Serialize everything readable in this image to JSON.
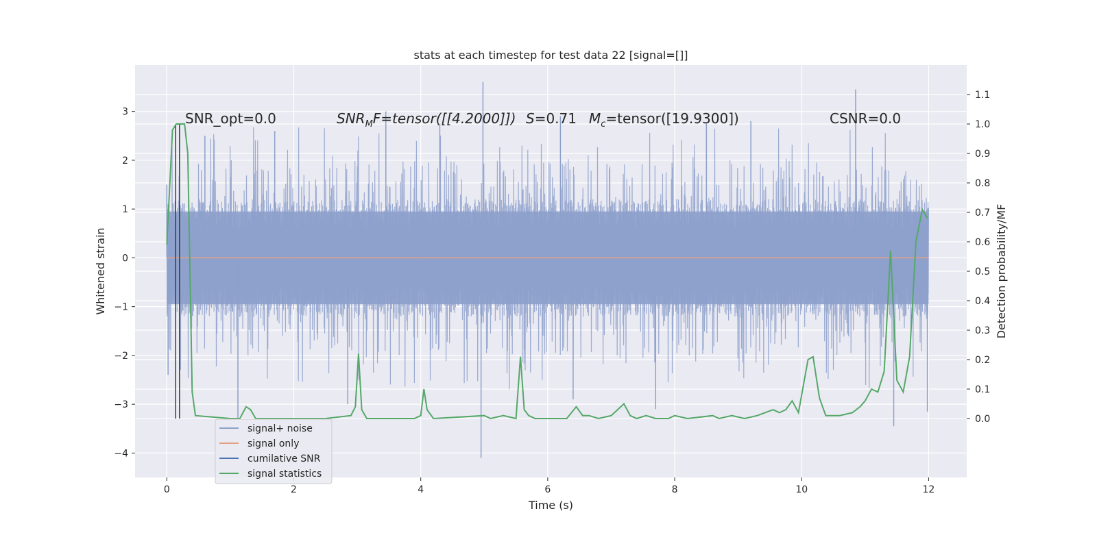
{
  "chart_data": {
    "type": "line",
    "title": "stats at each timestep for test data 22 [signal=[]]",
    "xlabel": "Time (s)",
    "ylabel": "Whitened strain",
    "y2label": "Detection probability/MF",
    "xlim": [
      -0.5,
      12.6
    ],
    "ylim": [
      -4.5,
      3.95
    ],
    "y2lim": [
      -0.2,
      1.2
    ],
    "xticks": [
      0,
      2,
      4,
      6,
      8,
      10,
      12
    ],
    "yticks": [
      -4,
      -3,
      -2,
      -1,
      0,
      1,
      2,
      3
    ],
    "y2ticks": [
      0.0,
      0.1,
      0.2,
      0.3,
      0.4,
      0.5,
      0.6,
      0.7,
      0.8,
      0.9,
      1.0,
      1.1
    ],
    "grid": true,
    "legend_position": "lower-left",
    "colors": {
      "signal_noise": "#8da0cb",
      "signal_only": "#e5a083",
      "cumulative_snr": "#4c72b0",
      "signal_statistics": "#55a868",
      "markers": "#3a3a3a",
      "axes_bg": "#eaeaf2",
      "grid": "#ffffff"
    },
    "annotations": {
      "snr_opt": "SNR_opt=0.0",
      "snr_mf_prefix": "SNR",
      "snr_mf_sub": "M",
      "snr_mf_rest": "F=tensor([[4.2000]])",
      "s_label": "S",
      "s_value": "=0.71",
      "mc_label": "M",
      "mc_sub": "c",
      "mc_value": "=tensor([19.9300])",
      "csnr": "CSNR=0.0"
    },
    "markers_x": [
      0.14,
      0.2
    ],
    "series": [
      {
        "name": "signal+ noise",
        "axis": "left",
        "style": "dense-noise",
        "x_range": [
          0,
          12
        ],
        "envelope_pos": 2.0,
        "envelope_neg": -1.85,
        "spikes": [
          {
            "x": 0.0,
            "y": 1.5
          },
          {
            "x": 0.02,
            "y": -2.4
          },
          {
            "x": 1.7,
            "y": 2.6
          },
          {
            "x": 1.12,
            "y": -3.3
          },
          {
            "x": 3.45,
            "y": 3.0
          },
          {
            "x": 4.98,
            "y": 3.6
          },
          {
            "x": 4.95,
            "y": -4.1
          },
          {
            "x": 2.85,
            "y": -3.0
          },
          {
            "x": 6.4,
            "y": -2.9
          },
          {
            "x": 7.7,
            "y": -3.1
          },
          {
            "x": 10.85,
            "y": 3.45
          },
          {
            "x": 11.45,
            "y": -3.45
          },
          {
            "x": 11.98,
            "y": -3.15
          },
          {
            "x": 0.6,
            "y": 2.5
          },
          {
            "x": 9.2,
            "y": 2.8
          },
          {
            "x": 6.2,
            "y": 2.9
          },
          {
            "x": 4.3,
            "y": 2.75
          },
          {
            "x": 8.5,
            "y": 2.75
          }
        ]
      },
      {
        "name": "signal only",
        "axis": "left",
        "x": [
          0,
          12
        ],
        "y": [
          0,
          0
        ]
      },
      {
        "name": "cumilative SNR",
        "axis": "left",
        "x": [],
        "y": []
      },
      {
        "name": "signal statistics",
        "axis": "right",
        "x": [
          0.0,
          0.09,
          0.15,
          0.22,
          0.28,
          0.33,
          0.4,
          0.45,
          1.0,
          1.15,
          1.25,
          1.32,
          1.4,
          2.5,
          2.9,
          2.97,
          3.02,
          3.07,
          3.15,
          3.4,
          3.9,
          4.0,
          4.05,
          4.1,
          4.2,
          5.0,
          5.1,
          5.3,
          5.5,
          5.57,
          5.63,
          5.7,
          5.8,
          6.0,
          6.3,
          6.45,
          6.55,
          6.65,
          6.8,
          7.0,
          7.2,
          7.3,
          7.4,
          7.55,
          7.7,
          7.9,
          8.0,
          8.2,
          8.6,
          8.7,
          8.9,
          9.1,
          9.3,
          9.55,
          9.65,
          9.75,
          9.85,
          9.95,
          10.1,
          10.18,
          10.28,
          10.38,
          10.6,
          10.8,
          10.92,
          11.0,
          11.1,
          11.2,
          11.3,
          11.4,
          11.5,
          11.6,
          11.7,
          11.8,
          11.9,
          11.98
        ],
        "y": [
          0.59,
          0.98,
          1.0,
          1.0,
          1.0,
          0.9,
          0.09,
          0.01,
          0.0,
          0.0,
          0.04,
          0.03,
          0.0,
          0.0,
          0.01,
          0.04,
          0.22,
          0.03,
          0.0,
          0.0,
          0.0,
          0.01,
          0.1,
          0.03,
          0.0,
          0.01,
          0.0,
          0.01,
          0.0,
          0.21,
          0.03,
          0.01,
          0.0,
          0.0,
          0.0,
          0.04,
          0.01,
          0.01,
          0.0,
          0.01,
          0.05,
          0.01,
          0.0,
          0.01,
          0.0,
          0.0,
          0.01,
          0.0,
          0.01,
          0.0,
          0.01,
          0.0,
          0.01,
          0.03,
          0.02,
          0.03,
          0.06,
          0.02,
          0.2,
          0.21,
          0.07,
          0.01,
          0.01,
          0.02,
          0.04,
          0.06,
          0.1,
          0.09,
          0.16,
          0.57,
          0.13,
          0.09,
          0.21,
          0.6,
          0.71,
          0.68
        ]
      }
    ]
  }
}
